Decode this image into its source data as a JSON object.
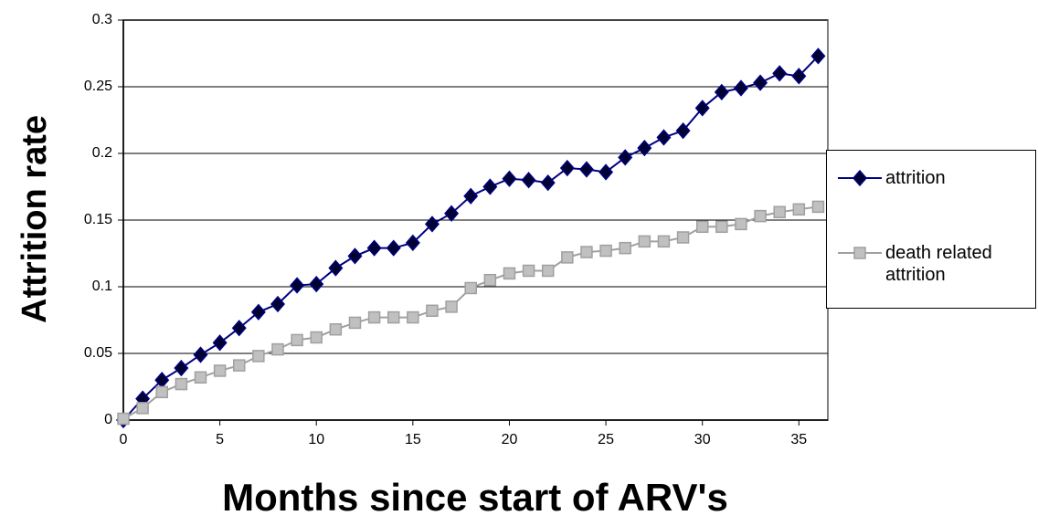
{
  "chart_data": {
    "type": "line",
    "x_label": "Months since start of ARV's",
    "y_label": "Attrition rate",
    "x": [
      0,
      1,
      2,
      3,
      4,
      5,
      6,
      7,
      8,
      9,
      10,
      11,
      12,
      13,
      14,
      15,
      16,
      17,
      18,
      19,
      20,
      21,
      22,
      23,
      24,
      25,
      26,
      27,
      28,
      29,
      30,
      31,
      32,
      33,
      34,
      35,
      36
    ],
    "series": [
      {
        "name": "attrition",
        "color": "#000080",
        "marker": "diamond",
        "values": [
          0,
          0.016,
          0.03,
          0.039,
          0.049,
          0.058,
          0.069,
          0.081,
          0.087,
          0.101,
          0.102,
          0.114,
          0.123,
          0.129,
          0.129,
          0.133,
          0.147,
          0.155,
          0.168,
          0.175,
          0.181,
          0.18,
          0.178,
          0.189,
          0.188,
          0.186,
          0.197,
          0.204,
          0.212,
          0.217,
          0.234,
          0.246,
          0.249,
          0.253,
          0.26,
          0.258,
          0.273
        ]
      },
      {
        "name": "death related attrition",
        "color": "#a0a0a0",
        "marker": "square",
        "values": [
          0.001,
          0.009,
          0.021,
          0.027,
          0.032,
          0.037,
          0.041,
          0.048,
          0.053,
          0.06,
          0.062,
          0.068,
          0.073,
          0.077,
          0.077,
          0.077,
          0.082,
          0.085,
          0.099,
          0.105,
          0.11,
          0.112,
          0.112,
          0.122,
          0.126,
          0.127,
          0.129,
          0.134,
          0.134,
          0.137,
          0.145,
          0.145,
          0.147,
          0.153,
          0.156,
          0.158,
          0.16
        ]
      }
    ],
    "xlim": [
      0,
      36.5
    ],
    "xticks": [
      0,
      5,
      10,
      15,
      20,
      25,
      30,
      35
    ],
    "ylim": [
      0,
      0.3
    ],
    "yticks": [
      0,
      0.05,
      0.1,
      0.15,
      0.2,
      0.25,
      0.3
    ],
    "grid": true,
    "legend": "right"
  }
}
